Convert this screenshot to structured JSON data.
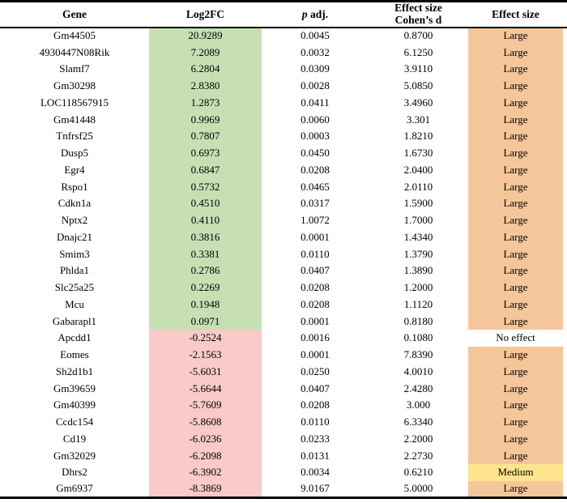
{
  "table": {
    "headers": {
      "gene": "Gene",
      "log2fc": "Log2FC",
      "padj_italic": "p",
      "padj_rest": " adj.",
      "effect_cohen_line1": "Effect size",
      "effect_cohen_line2": "Cohen’s d",
      "effect": "Effect size"
    },
    "rows": [
      {
        "gene": "Gm44505",
        "log2fc": "20.9289",
        "padj": "0.0045",
        "cohens_d": "0.8700",
        "effect": "Large",
        "fc_fill": "positive",
        "effect_fill": "large"
      },
      {
        "gene": "4930447N08Rik",
        "log2fc": "7.2089",
        "padj": "0.0032",
        "cohens_d": "6.1250",
        "effect": "Large",
        "fc_fill": "positive",
        "effect_fill": "large"
      },
      {
        "gene": "Slamf7",
        "log2fc": "6.2804",
        "padj": "0.0309",
        "cohens_d": "3.9110",
        "effect": "Large",
        "fc_fill": "positive",
        "effect_fill": "large"
      },
      {
        "gene": "Gm30298",
        "log2fc": "2.8380",
        "padj": "0.0028",
        "cohens_d": "5.0850",
        "effect": "Large",
        "fc_fill": "positive",
        "effect_fill": "large"
      },
      {
        "gene": "LOC118567915",
        "log2fc": "1.2873",
        "padj": "0.0411",
        "cohens_d": "3.4960",
        "effect": "Large",
        "fc_fill": "positive",
        "effect_fill": "large"
      },
      {
        "gene": "Gm41448",
        "log2fc": "0.9969",
        "padj": "0.0060",
        "cohens_d": "3.301",
        "effect": "Large",
        "fc_fill": "positive",
        "effect_fill": "large"
      },
      {
        "gene": "Tnfrsf25",
        "log2fc": "0.7807",
        "padj": "0.0003",
        "cohens_d": "1.8210",
        "effect": "Large",
        "fc_fill": "positive",
        "effect_fill": "large"
      },
      {
        "gene": "Dusp5",
        "log2fc": "0.6973",
        "padj": "0.0450",
        "cohens_d": "1.6730",
        "effect": "Large",
        "fc_fill": "positive",
        "effect_fill": "large"
      },
      {
        "gene": "Egr4",
        "log2fc": "0.6847",
        "padj": "0.0208",
        "cohens_d": "2.0400",
        "effect": "Large",
        "fc_fill": "positive",
        "effect_fill": "large"
      },
      {
        "gene": "Rspo1",
        "log2fc": "0.5732",
        "padj": "0.0465",
        "cohens_d": "2.0110",
        "effect": "Large",
        "fc_fill": "positive",
        "effect_fill": "large"
      },
      {
        "gene": "Cdkn1a",
        "log2fc": "0.4510",
        "padj": "0.0317",
        "cohens_d": "1.5900",
        "effect": "Large",
        "fc_fill": "positive",
        "effect_fill": "large"
      },
      {
        "gene": "Nptx2",
        "log2fc": "0.4110",
        "padj": "1.0072",
        "cohens_d": "1.7000",
        "effect": "Large",
        "fc_fill": "positive",
        "effect_fill": "large"
      },
      {
        "gene": "Dnajc21",
        "log2fc": "0.3816",
        "padj": "0.0001",
        "cohens_d": "1.4340",
        "effect": "Large",
        "fc_fill": "positive",
        "effect_fill": "large"
      },
      {
        "gene": "Smim3",
        "log2fc": "0.3381",
        "padj": "0.0110",
        "cohens_d": "1.3790",
        "effect": "Large",
        "fc_fill": "positive",
        "effect_fill": "large"
      },
      {
        "gene": "Phlda1",
        "log2fc": "0.2786",
        "padj": "0.0407",
        "cohens_d": "1.3890",
        "effect": "Large",
        "fc_fill": "positive",
        "effect_fill": "large"
      },
      {
        "gene": "Slc25a25",
        "log2fc": "0.2269",
        "padj": "0.0208",
        "cohens_d": "1.2000",
        "effect": "Large",
        "fc_fill": "positive",
        "effect_fill": "large"
      },
      {
        "gene": "Mcu",
        "log2fc": "0.1948",
        "padj": "0.0208",
        "cohens_d": "1.1120",
        "effect": "Large",
        "fc_fill": "positive",
        "effect_fill": "large"
      },
      {
        "gene": "Gabarapl1",
        "log2fc": "0.0971",
        "padj": "0.0001",
        "cohens_d": "0.8180",
        "effect": "Large",
        "fc_fill": "positive",
        "effect_fill": "large"
      },
      {
        "gene": "Apcdd1",
        "log2fc": "-0.2524",
        "padj": "0.0016",
        "cohens_d": "0.1080",
        "effect": "No effect",
        "fc_fill": "negative",
        "effect_fill": "none"
      },
      {
        "gene": "Eomes",
        "log2fc": "-2.1563",
        "padj": "0.0001",
        "cohens_d": "7.8390",
        "effect": "Large",
        "fc_fill": "negative",
        "effect_fill": "large"
      },
      {
        "gene": "Sh2d1b1",
        "log2fc": "-5.6031",
        "padj": "0.0250",
        "cohens_d": "4.0010",
        "effect": "Large",
        "fc_fill": "negative",
        "effect_fill": "large"
      },
      {
        "gene": "Gm39659",
        "log2fc": "-5.6644",
        "padj": "0.0407",
        "cohens_d": "2.4280",
        "effect": "Large",
        "fc_fill": "negative",
        "effect_fill": "large"
      },
      {
        "gene": "Gm40399",
        "log2fc": "-5.7609",
        "padj": "0.0208",
        "cohens_d": "3.000",
        "effect": "Large",
        "fc_fill": "negative",
        "effect_fill": "large"
      },
      {
        "gene": "Ccdc154",
        "log2fc": "-5.8608",
        "padj": "0.0110",
        "cohens_d": "6.3340",
        "effect": "Large",
        "fc_fill": "negative",
        "effect_fill": "large"
      },
      {
        "gene": "Cd19",
        "log2fc": "-6.0236",
        "padj": "0.0233",
        "cohens_d": "2.2000",
        "effect": "Large",
        "fc_fill": "negative",
        "effect_fill": "large"
      },
      {
        "gene": "Gm32029",
        "log2fc": "-6.2098",
        "padj": "0.0131",
        "cohens_d": "2.2730",
        "effect": "Large",
        "fc_fill": "negative",
        "effect_fill": "large"
      },
      {
        "gene": "Dhrs2",
        "log2fc": "-6.3902",
        "padj": "0.0034",
        "cohens_d": "0.6210",
        "effect": "Medium",
        "fc_fill": "negative",
        "effect_fill": "medium"
      },
      {
        "gene": "Gm6937",
        "log2fc": "-8.3869",
        "padj": "9.0167",
        "cohens_d": "5.0000",
        "effect": "Large",
        "fc_fill": "negative",
        "effect_fill": "large"
      }
    ]
  },
  "colors": {
    "positive_fill": "#c6e0b4",
    "negative_fill": "#fac9c9",
    "large_fill": "#f6c69b",
    "medium_fill": "#ffe48e",
    "rule_color": "#000000"
  }
}
